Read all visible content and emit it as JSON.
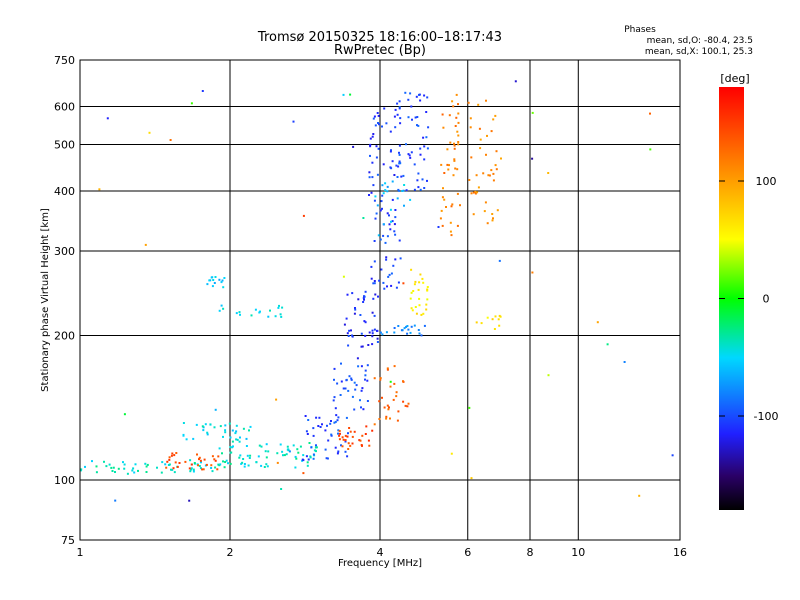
{
  "chart_data": {
    "type": "scatter",
    "title": "Tromsø 20150325 18:16:00–18:17:43",
    "subtitle": "RwPretec (Bp)",
    "xlabel": "Frequency [MHz]",
    "ylabel": "Stationary phase Virtual Height [km]",
    "x_scale": "log",
    "y_scale": "log",
    "xlim": [
      1,
      16
    ],
    "ylim": [
      75,
      750
    ],
    "grid": true,
    "x_ticks": [
      1,
      2,
      4,
      6,
      8,
      10,
      16
    ],
    "y_ticks": [
      75,
      100,
      200,
      300,
      400,
      500,
      600,
      750
    ],
    "phases": {
      "heading": "Phases",
      "line1": "mean, sd,O: -80.4, 23.5",
      "line2": "mean, sd,X: 100.1, 25.3"
    },
    "colorbar": {
      "label": "[deg]",
      "range": [
        -180,
        180
      ],
      "ticks": [
        100,
        0,
        -100
      ]
    },
    "point_groups": [
      {
        "x": [
          1.0,
          1.9
        ],
        "y": [
          103,
          110
        ],
        "phase": -40,
        "n": 55
      },
      {
        "x": [
          1.4,
          1.9
        ],
        "y": [
          105,
          114
        ],
        "phase": 140,
        "n": 30
      },
      {
        "x": [
          1.9,
          3.0
        ],
        "y": [
          106,
          120
        ],
        "phase": -40,
        "n": 70
      },
      {
        "x": [
          1.6,
          2.2
        ],
        "y": [
          120,
          132
        ],
        "phase": -45,
        "n": 35
      },
      {
        "x": [
          1.8,
          1.95
        ],
        "y": [
          252,
          265
        ],
        "phase": -60,
        "n": 14
      },
      {
        "x": [
          1.85,
          2.6
        ],
        "y": [
          218,
          232
        ],
        "phase": -50,
        "n": 18
      },
      {
        "x": [
          2.8,
          3.5
        ],
        "y": [
          110,
          140
        ],
        "phase": -100,
        "n": 45
      },
      {
        "x": [
          3.3,
          3.9
        ],
        "y": [
          115,
          130
        ],
        "phase": 145,
        "n": 28
      },
      {
        "x": [
          3.2,
          3.8
        ],
        "y": [
          140,
          175
        ],
        "phase": -100,
        "n": 35
      },
      {
        "x": [
          3.4,
          4.0
        ],
        "y": [
          175,
          250
        ],
        "phase": -110,
        "n": 45
      },
      {
        "x": [
          3.8,
          4.4
        ],
        "y": [
          250,
          600
        ],
        "phase": -105,
        "n": 90
      },
      {
        "x": [
          3.9,
          4.6
        ],
        "y": [
          340,
          420
        ],
        "phase": -60,
        "n": 18
      },
      {
        "x": [
          3.9,
          4.6
        ],
        "y": [
          130,
          175
        ],
        "phase": 130,
        "n": 30
      },
      {
        "x": [
          4.3,
          5.0
        ],
        "y": [
          400,
          650
        ],
        "phase": -100,
        "n": 55
      },
      {
        "x": [
          4.6,
          5.0
        ],
        "y": [
          220,
          275
        ],
        "phase": 60,
        "n": 25
      },
      {
        "x": [
          4.0,
          5.0
        ],
        "y": [
          200,
          210
        ],
        "phase": -80,
        "n": 20
      },
      {
        "x": [
          5.3,
          5.8
        ],
        "y": [
          320,
          640
        ],
        "phase": 115,
        "n": 45
      },
      {
        "x": [
          6.0,
          7.0
        ],
        "y": [
          340,
          620
        ],
        "phase": 110,
        "n": 40
      },
      {
        "x": [
          6.2,
          7.2
        ],
        "y": [
          205,
          220
        ],
        "phase": 60,
        "n": 10
      },
      {
        "x": [
          1.0,
          16.0
        ],
        "y": [
          90,
          700
        ],
        "phase": 0,
        "n": 45
      }
    ]
  }
}
